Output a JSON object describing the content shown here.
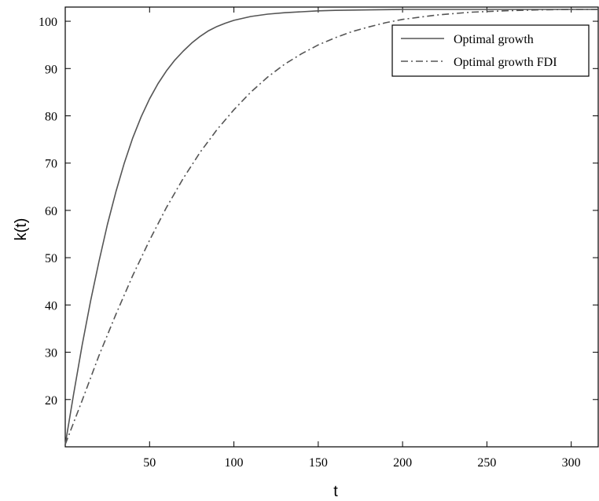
{
  "chart_data": {
    "type": "line",
    "xlabel": "t",
    "ylabel": "k(t)",
    "xlim": [
      0,
      316
    ],
    "ylim": [
      10,
      103
    ],
    "xticks": [
      50,
      100,
      150,
      200,
      250,
      300
    ],
    "yticks": [
      20,
      30,
      40,
      50,
      60,
      70,
      80,
      90,
      100
    ],
    "legend_position": "top-right",
    "series": [
      {
        "name": "Optimal growth",
        "style": "solid",
        "color": "#555555",
        "x": [
          0,
          5,
          10,
          15,
          20,
          25,
          30,
          35,
          40,
          45,
          50,
          55,
          60,
          65,
          70,
          75,
          80,
          85,
          90,
          95,
          100,
          110,
          120,
          130,
          140,
          150,
          160,
          180,
          200,
          250,
          300,
          316
        ],
        "y": [
          10.5,
          21.2,
          31.5,
          40.8,
          49.2,
          57.0,
          63.9,
          70.0,
          75.3,
          79.8,
          83.6,
          86.8,
          89.5,
          91.8,
          93.7,
          95.4,
          96.8,
          98.0,
          98.9,
          99.6,
          100.2,
          101.0,
          101.5,
          101.8,
          102.0,
          102.2,
          102.3,
          102.4,
          102.5,
          102.5,
          102.5,
          102.5
        ]
      },
      {
        "name": "Optimal growth FDI",
        "style": "dashdot",
        "color": "#555555",
        "x": [
          0,
          10,
          20,
          30,
          40,
          50,
          60,
          70,
          80,
          90,
          100,
          110,
          120,
          130,
          140,
          150,
          160,
          170,
          180,
          190,
          200,
          220,
          240,
          260,
          280,
          300,
          316
        ],
        "y": [
          10.5,
          19.8,
          29.3,
          38.0,
          46.2,
          53.7,
          60.6,
          66.8,
          72.3,
          77.1,
          81.3,
          85.0,
          88.2,
          90.9,
          93.1,
          95.0,
          96.5,
          97.8,
          98.8,
          99.7,
          100.4,
          101.3,
          101.9,
          102.2,
          102.4,
          102.5,
          102.5
        ]
      }
    ]
  }
}
